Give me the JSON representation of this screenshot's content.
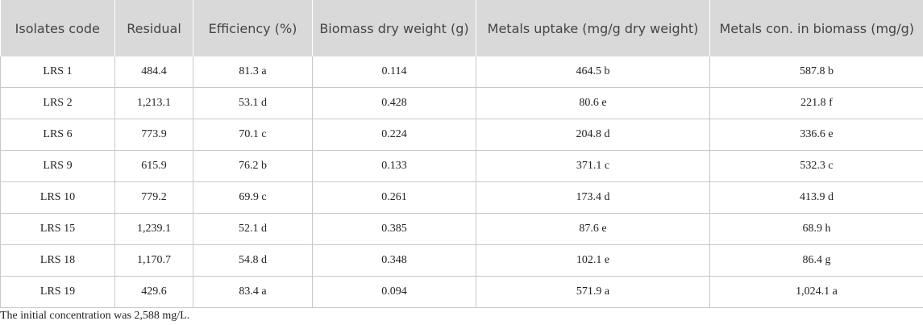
{
  "table": {
    "headers": [
      "Isolates code",
      "Residual",
      "Efficiency (%)",
      "Biomass dry weight (g)",
      "Metals uptake (mg/g dry weight)",
      "Metals con. in biomass (mg/g)"
    ],
    "rows": [
      [
        "LRS 1",
        "484.4",
        "81.3 a",
        "0.114",
        "464.5 b",
        "587.8 b"
      ],
      [
        "LRS 2",
        "1,213.1",
        "53.1 d",
        "0.428",
        "80.6 e",
        "221.8 f"
      ],
      [
        "LRS 6",
        "773.9",
        "70.1 c",
        "0.224",
        "204.8 d",
        "336.6 e"
      ],
      [
        "LRS 9",
        "615.9",
        "76.2 b",
        "0.133",
        "371.1 c",
        "532.3 c"
      ],
      [
        "LRS 10",
        "779.2",
        "69.9 c",
        "0.261",
        "173.4 d",
        "413.9 d"
      ],
      [
        "LRS 15",
        "1,239.1",
        "52.1 d",
        "0.385",
        "87.6 e",
        "68.9 h"
      ],
      [
        "LRS 18",
        "1,170.7",
        "54.8 d",
        "0.348",
        "102.1 e",
        "86.4 g"
      ],
      [
        "LRS 19",
        "429.6",
        "83.4 a",
        "0.094",
        "571.9 a",
        "1,024.1 a"
      ]
    ]
  },
  "footnote": "The initial concentration was 2,588 mg/L."
}
